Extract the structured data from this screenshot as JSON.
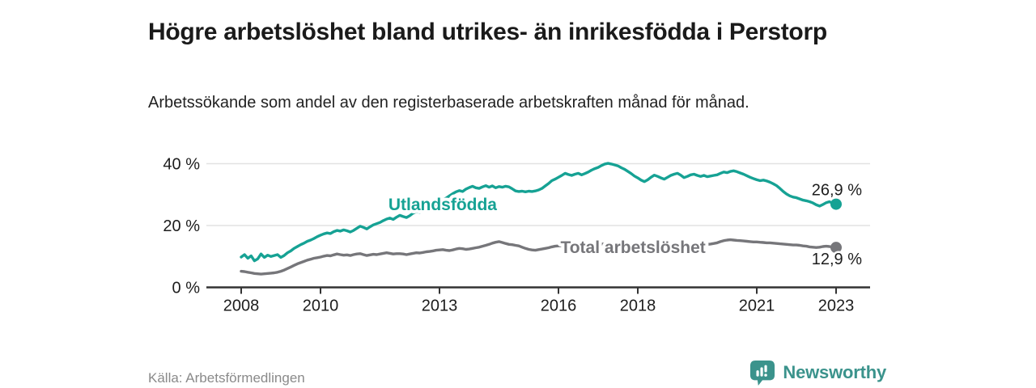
{
  "header": {
    "title": "Högre arbetslöshet bland utrikes- än inrikesfödda i Perstorp",
    "subtitle": "Arbetssökande som andel av den registerbaserade arbetskraften månad för månad."
  },
  "footer": {
    "source": "Källa: Arbetsförmedlingen",
    "brand": "Newsworthy",
    "brand_icon": "newsworthy-speech-bubble-bar-chart-icon"
  },
  "colors": {
    "foreign_line": "#16a294",
    "total_line": "#76767a",
    "axis": "#333333",
    "grid": "#e2e2e2",
    "tick_text": "#1d1d1d",
    "title_text": "#1a1a1a",
    "muted_text": "#8a8a8a",
    "brand_teal": "#3b938c"
  },
  "chart_data": {
    "type": "line",
    "unit": "%",
    "x_start_year": 2008,
    "points_per_year": 12,
    "xlim": [
      2007.1,
      2023.9
    ],
    "ylim": [
      0,
      45
    ],
    "grid": "horizontal-only",
    "legend_position": "inline-labels-on-lines",
    "x_ticks": [
      {
        "year": 2008,
        "label": "2008"
      },
      {
        "year": 2010,
        "label": "2010"
      },
      {
        "year": 2013,
        "label": "2013"
      },
      {
        "year": 2016,
        "label": "2016"
      },
      {
        "year": 2018,
        "label": "2018"
      },
      {
        "year": 2021,
        "label": "2021"
      },
      {
        "year": 2023,
        "label": "2023"
      }
    ],
    "y_ticks": [
      {
        "value": 0,
        "label": "0 %"
      },
      {
        "value": 20,
        "label": "20 %"
      },
      {
        "value": 40,
        "label": "40 %"
      }
    ],
    "series": [
      {
        "name": "Utlandsfödda",
        "color": "#16a294",
        "end_value_label": "26,9 %",
        "end_label_side": "above",
        "inline_label_year": 2013.08,
        "inline_label_value": 26.8,
        "values": [
          9.8,
          10.6,
          9.4,
          10.2,
          8.6,
          9.2,
          10.8,
          9.7,
          10.4,
          10.0,
          10.3,
          10.6,
          9.7,
          10.3,
          11.2,
          11.8,
          12.6,
          13.2,
          13.8,
          14.3,
          14.9,
          15.3,
          15.8,
          16.4,
          16.9,
          17.3,
          17.6,
          17.4,
          18.0,
          18.4,
          18.2,
          18.6,
          18.3,
          17.9,
          18.4,
          19.1,
          19.8,
          19.4,
          18.9,
          19.6,
          20.2,
          20.6,
          21.0,
          21.6,
          22.1,
          22.4,
          22.0,
          22.7,
          23.3,
          22.9,
          22.6,
          23.2,
          24.0,
          24.5,
          24.3,
          24.9,
          25.3,
          25.8,
          26.3,
          26.9,
          27.5,
          28.2,
          28.9,
          29.6,
          30.3,
          30.9,
          31.3,
          31.0,
          31.8,
          32.3,
          32.7,
          32.2,
          32.0,
          32.5,
          32.9,
          32.4,
          32.8,
          32.2,
          32.6,
          32.4,
          32.7,
          32.5,
          31.9,
          31.2,
          31.0,
          31.1,
          30.9,
          31.1,
          31.0,
          31.2,
          31.5,
          32.0,
          32.8,
          33.6,
          34.5,
          35.0,
          35.6,
          36.2,
          36.9,
          36.5,
          36.2,
          36.6,
          36.9,
          36.4,
          36.8,
          37.3,
          37.9,
          38.4,
          38.8,
          39.4,
          39.9,
          40.1,
          39.9,
          39.6,
          39.3,
          38.7,
          38.2,
          37.5,
          36.8,
          36.0,
          35.4,
          34.7,
          34.2,
          34.8,
          35.6,
          36.3,
          35.9,
          35.4,
          35.0,
          35.6,
          36.2,
          36.6,
          36.9,
          36.3,
          35.5,
          35.9,
          36.4,
          36.6,
          36.2,
          35.9,
          36.2,
          35.8,
          36.0,
          36.2,
          36.4,
          36.9,
          37.3,
          37.1,
          37.5,
          37.7,
          37.4,
          37.0,
          36.6,
          36.1,
          35.6,
          35.2,
          34.8,
          34.5,
          34.7,
          34.4,
          34.0,
          33.5,
          32.9,
          32.0,
          31.0,
          30.2,
          29.6,
          29.2,
          29.0,
          28.6,
          28.2,
          28.0,
          27.7,
          27.3,
          26.7,
          26.3,
          26.8,
          27.4,
          27.7,
          27.2,
          26.9
        ]
      },
      {
        "name": "Total arbetslöshet",
        "color": "#76767a",
        "end_value_label": "12,9 %",
        "end_label_side": "below",
        "inline_label_year": 2017.88,
        "inline_label_value": 12.9,
        "values": [
          5.2,
          5.1,
          4.9,
          4.7,
          4.5,
          4.4,
          4.3,
          4.4,
          4.5,
          4.6,
          4.7,
          4.9,
          5.2,
          5.6,
          6.1,
          6.6,
          7.1,
          7.6,
          8.0,
          8.4,
          8.8,
          9.1,
          9.4,
          9.6,
          9.8,
          10.1,
          10.3,
          10.2,
          10.5,
          10.8,
          10.6,
          10.4,
          10.5,
          10.3,
          10.6,
          10.8,
          10.9,
          10.6,
          10.3,
          10.5,
          10.7,
          10.6,
          10.8,
          11.0,
          11.2,
          11.0,
          10.8,
          10.9,
          10.9,
          10.8,
          10.6,
          10.8,
          11.0,
          11.2,
          11.1,
          11.3,
          11.5,
          11.6,
          11.8,
          12.0,
          12.1,
          12.2,
          12.0,
          11.9,
          12.1,
          12.4,
          12.6,
          12.5,
          12.3,
          12.4,
          12.6,
          12.8,
          13.0,
          13.3,
          13.6,
          13.9,
          14.3,
          14.6,
          14.8,
          14.5,
          14.2,
          13.9,
          13.8,
          13.6,
          13.4,
          13.0,
          12.6,
          12.3,
          12.1,
          12.0,
          12.2,
          12.4,
          12.6,
          12.8,
          13.1,
          13.3,
          13.4,
          13.5,
          13.6,
          13.5,
          13.4,
          13.5,
          13.6,
          13.5,
          13.7,
          13.8,
          13.9,
          14.0,
          13.9,
          14.0,
          14.1,
          14.0,
          13.9,
          13.8,
          13.7,
          13.6,
          13.5,
          13.6,
          13.5,
          13.5,
          13.5,
          13.4,
          13.3,
          13.4,
          13.4,
          13.3,
          13.4,
          13.3,
          13.2,
          13.3,
          13.3,
          13.2,
          13.3,
          13.2,
          13.1,
          13.2,
          13.3,
          13.4,
          13.5,
          13.6,
          13.7,
          13.9,
          14.0,
          14.2,
          14.4,
          14.8,
          15.1,
          15.3,
          15.4,
          15.3,
          15.2,
          15.1,
          15.0,
          14.9,
          14.8,
          14.7,
          14.7,
          14.6,
          14.5,
          14.4,
          14.4,
          14.3,
          14.2,
          14.1,
          14.0,
          13.9,
          13.8,
          13.7,
          13.7,
          13.6,
          13.4,
          13.3,
          13.1,
          13.0,
          12.9,
          13.0,
          13.2,
          13.3,
          13.2,
          13.0,
          12.9
        ]
      }
    ]
  }
}
